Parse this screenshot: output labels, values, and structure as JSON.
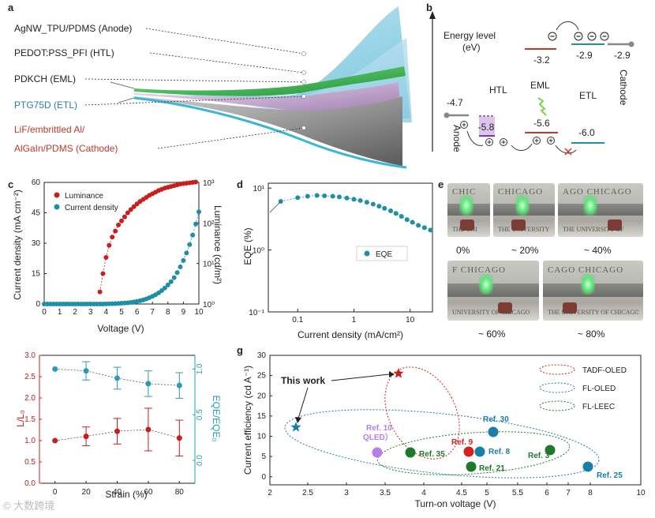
{
  "panel_letters": {
    "a": "a",
    "b": "b",
    "c": "c",
    "d": "d",
    "e": "e",
    "g": "g"
  },
  "panel_a": {
    "layers": [
      {
        "label": "AgNW_TPU/PDMS (Anode)",
        "color": "#222222"
      },
      {
        "label": "PEDOT:PSS_PFI (HTL)",
        "color": "#222222"
      },
      {
        "label": "PDKCH (EML)",
        "color": "#222222"
      },
      {
        "label": "PTG75D (ETL)",
        "color": "#2a7ea8"
      },
      {
        "label": "LiF/embrittled Al/",
        "color": "#c0392b"
      },
      {
        "label": "AlGaIn/PDMS (Cathode)",
        "color": "#c0392b"
      }
    ]
  },
  "panel_b": {
    "energy_title_1": "Energy level",
    "energy_title_2": "(eV)",
    "levels": {
      "anode": "-4.7",
      "htl": "-5.8",
      "eml_lumo": "-3.2",
      "eml_homo": "-5.6",
      "etl_lumo": "-2.9",
      "etl_homo": "-6.0",
      "cathode": "-2.9"
    },
    "labels": {
      "htl": "HTL",
      "eml": "EML",
      "etl": "ETL",
      "anode": "Anode",
      "cathode": "Cathode"
    }
  },
  "chart_data": [
    {
      "type": "scatter",
      "panel": "c",
      "xlabel": "Voltage (V)",
      "ylabel": "Current density (mA cm⁻²)",
      "y2label": "Luminance (cd/m²)",
      "xlim": [
        0,
        10
      ],
      "ylim": [
        0,
        60
      ],
      "y2lim_log10": [
        0,
        3
      ],
      "xticks": [
        "0",
        "1",
        "2",
        "3",
        "4",
        "5",
        "6",
        "7",
        "8",
        "9",
        "10"
      ],
      "yticks": [
        "0",
        "15",
        "30",
        "45",
        "60"
      ],
      "y2ticks": [
        "10⁰",
        "10¹",
        "10²",
        "10³"
      ],
      "legend": [
        "Luminance",
        "Current density"
      ],
      "legend_position": "top-left",
      "series": [
        {
          "name": "Luminance",
          "color": "#c81e1e",
          "axis": "right_log10",
          "x": [
            3.6,
            3.8,
            4.0,
            4.2,
            4.4,
            4.6,
            4.8,
            5.0,
            5.2,
            5.4,
            5.6,
            5.8,
            6.0,
            6.2,
            6.4,
            6.6,
            6.8,
            7.0,
            7.2,
            7.4,
            7.6,
            7.8,
            8.0,
            8.2,
            8.4,
            8.6,
            8.8,
            9.0,
            9.2,
            9.4,
            9.6,
            9.8
          ],
          "y": [
            0.3,
            0.75,
            1.15,
            1.45,
            1.65,
            1.8,
            1.95,
            2.05,
            2.15,
            2.25,
            2.33,
            2.4,
            2.47,
            2.53,
            2.58,
            2.63,
            2.68,
            2.72,
            2.76,
            2.8,
            2.83,
            2.86,
            2.88,
            2.9,
            2.92,
            2.94,
            2.96,
            2.97,
            2.98,
            2.99,
            3.0,
            3.01
          ]
        },
        {
          "name": "Current density",
          "color": "#1f8fa8",
          "axis": "left",
          "x": [
            0,
            0.2,
            0.4,
            0.6,
            0.8,
            1.0,
            1.2,
            1.4,
            1.6,
            1.8,
            2.0,
            2.2,
            2.4,
            2.6,
            2.8,
            3.0,
            3.2,
            3.4,
            3.6,
            3.8,
            4.0,
            4.2,
            4.4,
            4.6,
            4.8,
            5.0,
            5.2,
            5.4,
            5.6,
            5.8,
            6.0,
            6.2,
            6.4,
            6.6,
            6.8,
            7.0,
            7.2,
            7.4,
            7.6,
            7.8,
            8.0,
            8.2,
            8.4,
            8.6,
            8.8,
            9.0,
            9.2,
            9.4,
            9.6,
            9.8,
            10.0
          ],
          "y": [
            0,
            0,
            0,
            0,
            0,
            0,
            0,
            0,
            0,
            0,
            0,
            0,
            0,
            0,
            0,
            0,
            0,
            0,
            0,
            0,
            0.05,
            0.1,
            0.15,
            0.2,
            0.3,
            0.4,
            0.5,
            0.6,
            0.8,
            1.0,
            1.3,
            1.6,
            2.0,
            2.5,
            3.1,
            3.8,
            4.6,
            5.5,
            6.6,
            7.9,
            9.4,
            11.0,
            13.0,
            15.5,
            18.3,
            21.5,
            25.2,
            29.3,
            34.0,
            39.5,
            45.5
          ]
        }
      ]
    },
    {
      "type": "scatter",
      "panel": "d",
      "xlabel": "Current density (mA/cm²)",
      "ylabel": "EQE (%)",
      "xscale": "log",
      "yscale": "log",
      "xlim": [
        0.03,
        25
      ],
      "ylim": [
        0.1,
        12
      ],
      "xticks": [
        "0.1",
        "1",
        "10"
      ],
      "yticks": [
        "10⁻¹",
        "10⁰",
        "10¹"
      ],
      "legend": [
        "EQE"
      ],
      "legend_position": "center-right",
      "series": [
        {
          "name": "EQE",
          "color": "#1f8fa8",
          "x": [
            0.05,
            0.1,
            0.15,
            0.22,
            0.3,
            0.42,
            0.55,
            0.75,
            1.0,
            1.3,
            1.7,
            2.2,
            2.8,
            3.5,
            4.5,
            5.6,
            7.0,
            8.8,
            11,
            14,
            18,
            23
          ],
          "y": [
            6.1,
            7.0,
            7.4,
            7.6,
            7.5,
            7.4,
            7.2,
            6.9,
            6.6,
            6.3,
            5.9,
            5.5,
            5.1,
            4.7,
            4.3,
            3.9,
            3.5,
            3.1,
            2.8,
            2.5,
            2.3,
            2.1
          ]
        }
      ]
    },
    {
      "type": "scatter",
      "panel": "f",
      "xlabel": "Strain (%)",
      "ylabel": "L/L₀",
      "y2label": "EQE/EQE₀",
      "xlim": [
        -10,
        90
      ],
      "ylim": [
        0,
        3.0
      ],
      "y2lim": [
        -0.25,
        1.15
      ],
      "xticks": [
        "0",
        "20",
        "40",
        "60",
        "80"
      ],
      "yticks": [
        "0.0",
        "0.5",
        "1.0",
        "1.5",
        "2.0",
        "2.5",
        "3.0"
      ],
      "y2ticks": [
        "0.0",
        "0.5",
        "1.0"
      ],
      "series": [
        {
          "name": "L/L0",
          "color": "#c81e1e",
          "axis": "left",
          "x": [
            0,
            20,
            40,
            60,
            80
          ],
          "y": [
            1.0,
            1.1,
            1.22,
            1.26,
            1.06
          ],
          "err": [
            0.0,
            0.22,
            0.3,
            0.5,
            0.42
          ]
        },
        {
          "name": "EQE/EQE0",
          "color": "#2a9bb5",
          "axis": "right",
          "x": [
            0,
            20,
            40,
            60,
            80
          ],
          "y": [
            1.0,
            0.98,
            0.9,
            0.84,
            0.82
          ],
          "err": [
            0.0,
            0.1,
            0.12,
            0.14,
            0.14
          ]
        }
      ]
    },
    {
      "type": "scatter",
      "panel": "g",
      "xlabel": "Turn-on voltage (V)",
      "ylabel": "Current efficiency (cd A⁻¹)",
      "xlim": [
        2,
        10
      ],
      "ylim": [
        -2,
        30
      ],
      "xticks": [
        "2",
        "2.5",
        "3",
        "3.5",
        "4",
        "4.5",
        "5",
        "5.5",
        "6",
        "7",
        "8",
        "10"
      ],
      "yticks": [
        "0",
        "5",
        "10",
        "15",
        "20",
        "25",
        "30"
      ],
      "legend": [
        "TADF-OLED",
        "FL-OLED",
        "FL-LEEC"
      ],
      "legend_position": "top-right",
      "points": [
        {
          "label": "This work",
          "x": 2.25,
          "y": 11.5,
          "color": "#1a7fa8",
          "marker": "star"
        },
        {
          "label": "",
          "x": 3.5,
          "y": 25.2,
          "color": "#c81e1e",
          "marker": "star"
        },
        {
          "label": "Ref. 9",
          "x": 4.75,
          "y": 5.4,
          "color": "#d62020",
          "marker": "circle"
        },
        {
          "label": "Ref. 10 QLED",
          "x": 3.2,
          "y": 5.0,
          "color": "#b67ee8",
          "marker": "circle"
        },
        {
          "label": "Ref. 35",
          "x": 3.7,
          "y": 5.1,
          "color": "#1e7a2a",
          "marker": "circle"
        },
        {
          "label": "Ref. 21",
          "x": 4.7,
          "y": 1.3,
          "color": "#1e7a2a",
          "marker": "circle"
        },
        {
          "label": "Ref. 8",
          "x": 4.9,
          "y": 5.2,
          "color": "#1a7fa8",
          "marker": "circle"
        },
        {
          "label": "Ref. 30",
          "x": 5.3,
          "y": 10.2,
          "color": "#1a7fa8",
          "marker": "circle"
        },
        {
          "label": "Ref. 3",
          "x": 6.8,
          "y": 5.8,
          "color": "#1e7a2a",
          "marker": "circle"
        },
        {
          "label": "Ref. 25",
          "x": 8.0,
          "y": 1.5,
          "color": "#1a7fa8",
          "marker": "circle"
        }
      ]
    }
  ],
  "panel_e": {
    "captions": [
      "0%",
      "~ 20%",
      "~ 40%",
      "~ 60%",
      "~ 80%"
    ]
  },
  "watermark": "© 大数跨境"
}
